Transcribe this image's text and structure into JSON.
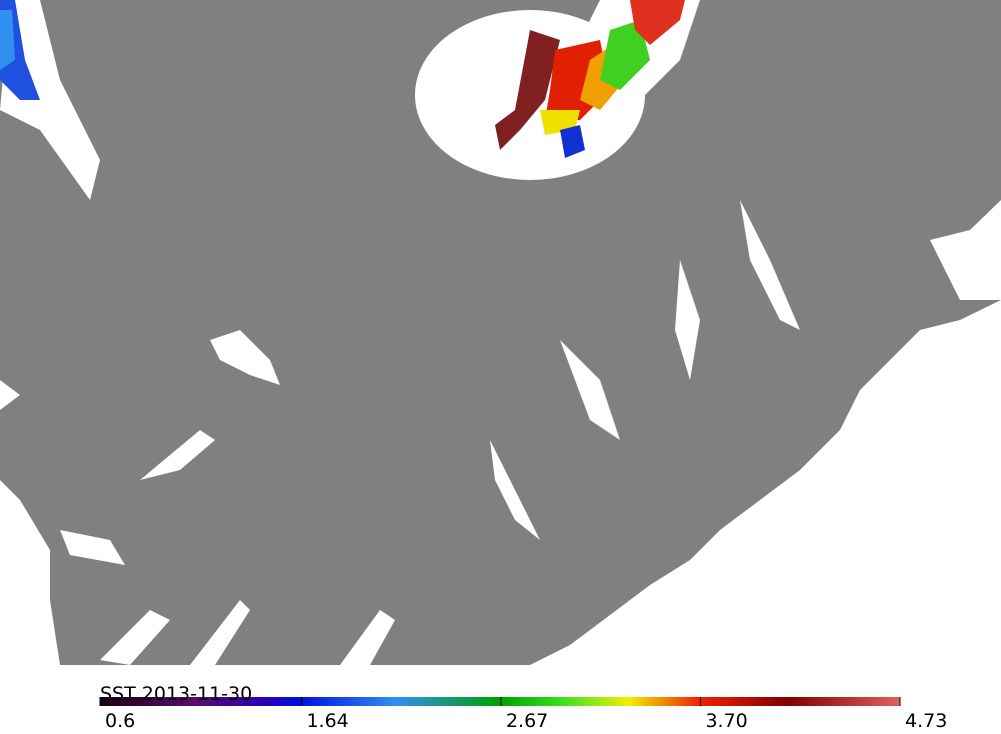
{
  "map": {
    "colorbar": {
      "label": "SST 2013-11-30",
      "range": [
        0.6,
        4.73
      ],
      "ticks": [
        0.6,
        1.64,
        2.67,
        {
          "value": 3.7,
          "label": "3.70"
        },
        4.73
      ]
    }
  }
}
